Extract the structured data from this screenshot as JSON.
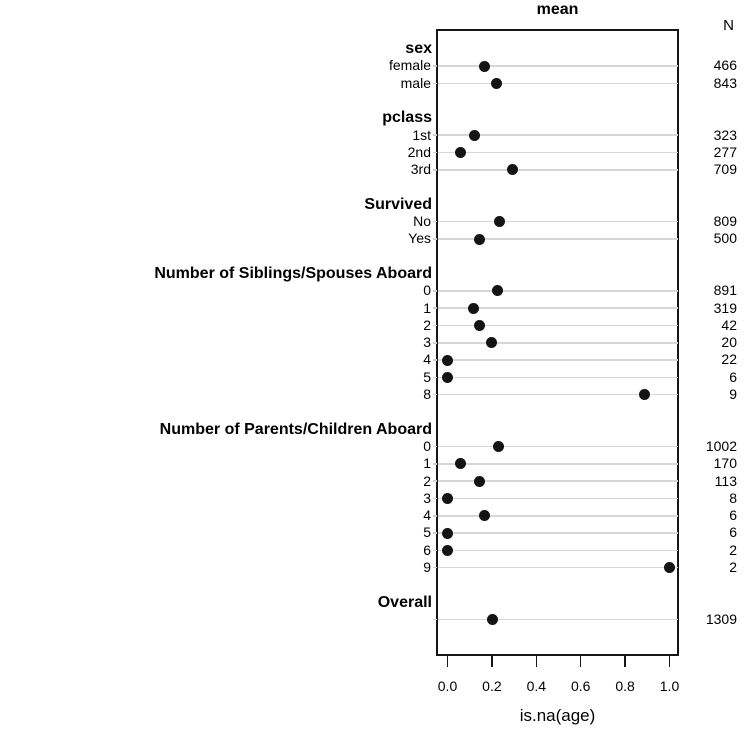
{
  "chart_data": {
    "type": "scatter",
    "subtype": "summary-dotplot",
    "title": "mean",
    "xlabel": "is.na(age)",
    "n_header": "N",
    "xlim": [
      0.0,
      1.0
    ],
    "xticks": [
      0.0,
      0.2,
      0.4,
      0.6,
      0.8,
      1.0
    ],
    "grid": true,
    "legend": "none",
    "groups": [
      {
        "header": "sex",
        "levels": [
          {
            "label": "female",
            "value": 0.167,
            "n": 466
          },
          {
            "label": "male",
            "value": 0.219,
            "n": 843
          }
        ]
      },
      {
        "header": "pclass",
        "levels": [
          {
            "label": "1st",
            "value": 0.121,
            "n": 323
          },
          {
            "label": "2nd",
            "value": 0.058,
            "n": 277
          },
          {
            "label": "3rd",
            "value": 0.293,
            "n": 709
          }
        ]
      },
      {
        "header": "Survived",
        "levels": [
          {
            "label": "No",
            "value": 0.235,
            "n": 809
          },
          {
            "label": "Yes",
            "value": 0.146,
            "n": 500
          }
        ]
      },
      {
        "header": "Number of Siblings/Spouses Aboard",
        "levels": [
          {
            "label": "0",
            "value": 0.226,
            "n": 891
          },
          {
            "label": "1",
            "value": 0.116,
            "n": 319
          },
          {
            "label": "2",
            "value": 0.143,
            "n": 42
          },
          {
            "label": "3",
            "value": 0.2,
            "n": 20
          },
          {
            "label": "4",
            "value": 0.0,
            "n": 22
          },
          {
            "label": "5",
            "value": 0.0,
            "n": 6
          },
          {
            "label": "8",
            "value": 0.889,
            "n": 9
          }
        ]
      },
      {
        "header": "Number of Parents/Children Aboard",
        "levels": [
          {
            "label": "0",
            "value": 0.229,
            "n": 1002
          },
          {
            "label": "1",
            "value": 0.059,
            "n": 170
          },
          {
            "label": "2",
            "value": 0.142,
            "n": 113
          },
          {
            "label": "3",
            "value": 0.0,
            "n": 8
          },
          {
            "label": "4",
            "value": 0.167,
            "n": 6
          },
          {
            "label": "5",
            "value": 0.0,
            "n": 6
          },
          {
            "label": "6",
            "value": 0.0,
            "n": 2
          },
          {
            "label": "9",
            "value": 1.0,
            "n": 2
          }
        ]
      },
      {
        "header": "Overall",
        "levels": [
          {
            "label": "",
            "value": 0.201,
            "n": 1309
          }
        ]
      }
    ],
    "colors": {
      "dot": "#141414",
      "grid": "#d6d6d6",
      "box": "#161616",
      "text": "#000000",
      "background": "#ffffff"
    }
  }
}
